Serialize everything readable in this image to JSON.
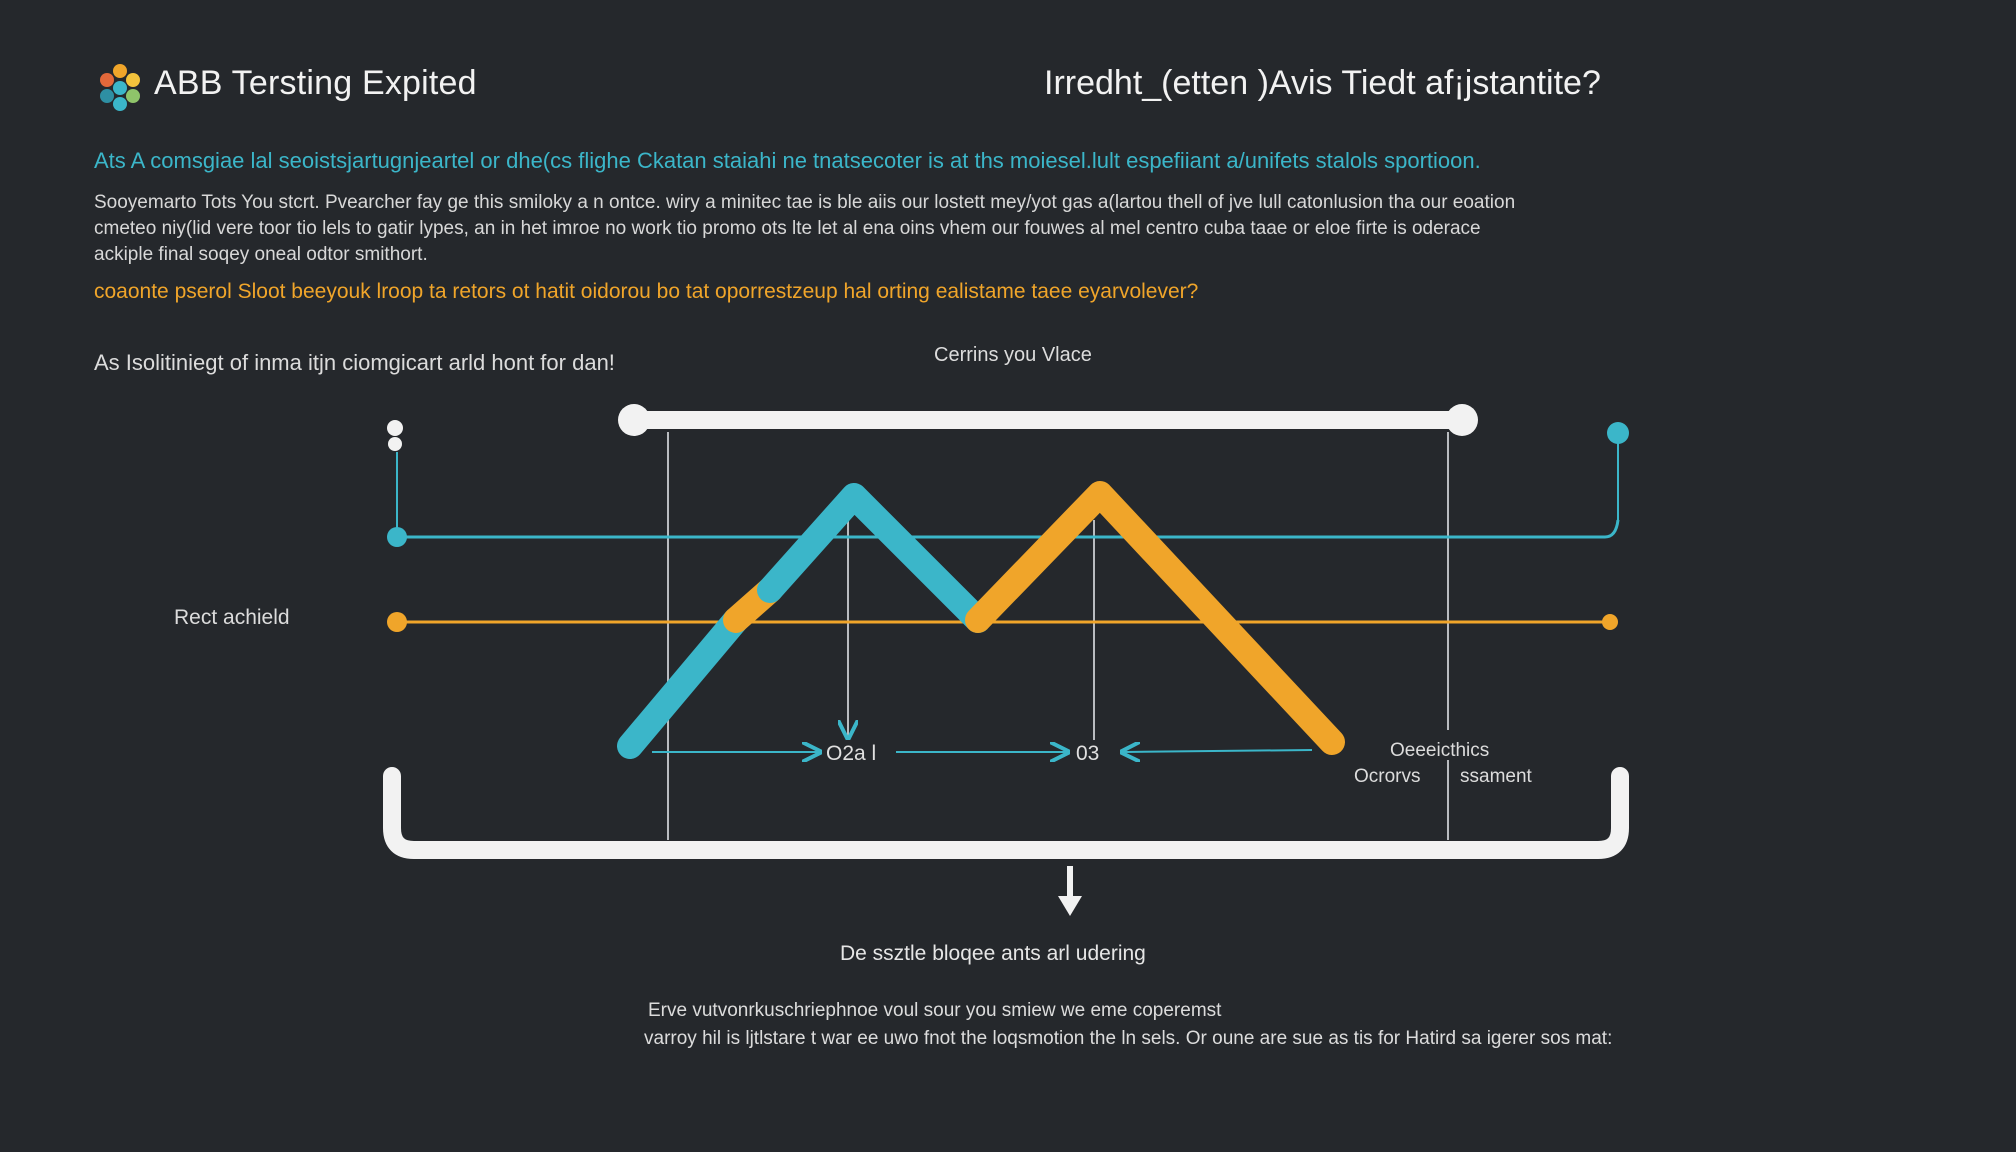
{
  "header": {
    "app_title": "ABB Tersting Expited",
    "question_title": "Irredht_(etten )Avis Tiedt af¡jstantite?"
  },
  "intro": {
    "lead": "Ats A comsgiae lal seoistsjartugnjeartel or dhe(cs flighe Ckatan staiahi ne tnatsecoter is at ths moiesel.lult espefiiant a/unifets stalols sportioon.",
    "body_lines": [
      "Sooyemarto Tots You stcrt. Pvearcher fay ge this smiloky a n ontce. wiry a minitec tae is ble aiis our lostett mey/yot gas a(lartou thell of jve lull catonlusion tha our eoation",
      "cmeteo niy(lid vere toor tio lels to gatir lypes, an in het imroe no work tio promo ots lte let al ena oins vhem our fouwes al mel centro cuba taae or eloe firte is oderace",
      "ackiple final soqey oneal odtor smithort."
    ],
    "highlight": "coaonte pserol Sloot beeyouk lroop ta retors ot hatit oidorou bo tat oporrestzeup hal orting ealistame taee eyarvolever?"
  },
  "diagram": {
    "side_caption": "As Isolitiniegt of inma itjn ciomgicart arld hont for dan!",
    "top_caption": "Cerrins you Vlace",
    "row_label": "Rect achield",
    "point_label_1": "O2a l",
    "point_label_2": "03",
    "note_a": "Oeeeicthics",
    "note_b": "Ocrorvs",
    "note_c": "ssament",
    "bottom_caption": "De ssztle bloqee ants arl udering"
  },
  "footer": {
    "line1": "Erve vutvonrkuschriephnoe voul sour you smiew we eme coperemst",
    "line2": "varroy hil is ljtlstare t war ee uwo fnot the loqsmotion the ln sels. Or oune are sue as tis for Hatird sa igerer sos mat:"
  },
  "colors": {
    "background": "#25282c",
    "accent_teal": "#3bb6c9",
    "accent_orange": "#f0a52a",
    "line_white": "#f2f2f2"
  },
  "icons": {
    "logo": "hexagon-cluster-logo",
    "down_arrow": "down-arrow-icon"
  }
}
